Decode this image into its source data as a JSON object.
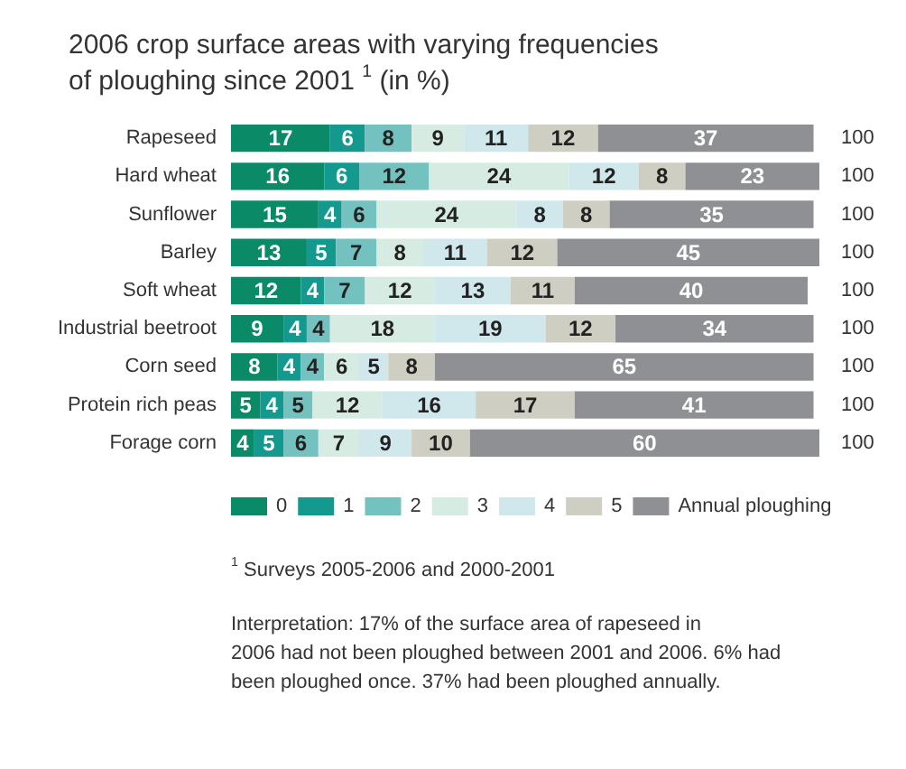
{
  "chart_data": {
    "type": "bar",
    "orientation": "horizontal",
    "stacked": true,
    "data_labels": true,
    "legend": "bottom",
    "title": "2006 crop surface areas with varying frequencies of ploughing since 2001 $^{1}$ (in %)",
    "categories": [
      "Rapeseed",
      "Hard wheat",
      "Sunflower",
      "Barley",
      "Soft wheat",
      "Industrial beetroot",
      "Corn seed",
      "Protein rich peas",
      "Forage corn"
    ],
    "series": [
      {
        "name": "0",
        "color": "#0b8a68",
        "values": [
          17,
          16,
          15,
          13,
          12,
          9,
          8,
          5,
          4
        ]
      },
      {
        "name": "1",
        "color": "#14998f",
        "values": [
          6,
          6,
          4,
          5,
          4,
          4,
          4,
          4,
          5
        ]
      },
      {
        "name": "2",
        "color": "#74c2c0",
        "values": [
          8,
          12,
          6,
          7,
          7,
          4,
          4,
          5,
          6
        ]
      },
      {
        "name": "3",
        "color": "#d6ece2",
        "values": [
          9,
          24,
          24,
          8,
          12,
          18,
          6,
          12,
          7
        ]
      },
      {
        "name": "4",
        "color": "#d0e8ec",
        "values": [
          11,
          12,
          8,
          11,
          13,
          19,
          5,
          16,
          9
        ]
      },
      {
        "name": "5",
        "color": "#cfcec3",
        "values": [
          12,
          8,
          8,
          12,
          11,
          12,
          8,
          17,
          10
        ]
      },
      {
        "name": "Annual ploughing",
        "color": "#8e9093",
        "values": [
          37,
          23,
          35,
          45,
          40,
          34,
          65,
          41,
          60
        ]
      }
    ],
    "totals": [
      "100",
      "100",
      "100",
      "100",
      "100",
      "100",
      "100",
      "100",
      "100"
    ],
    "annotations": [
      "$^{1}$ Surveys 2005-2006 and 2000-2001",
      "Interpretation: 17% of the surface area of rapeseed in 2006 had not been ploughed between 2001 and 2006. 6% had been ploughed once. 37% had been ploughed annually."
    ]
  }
}
